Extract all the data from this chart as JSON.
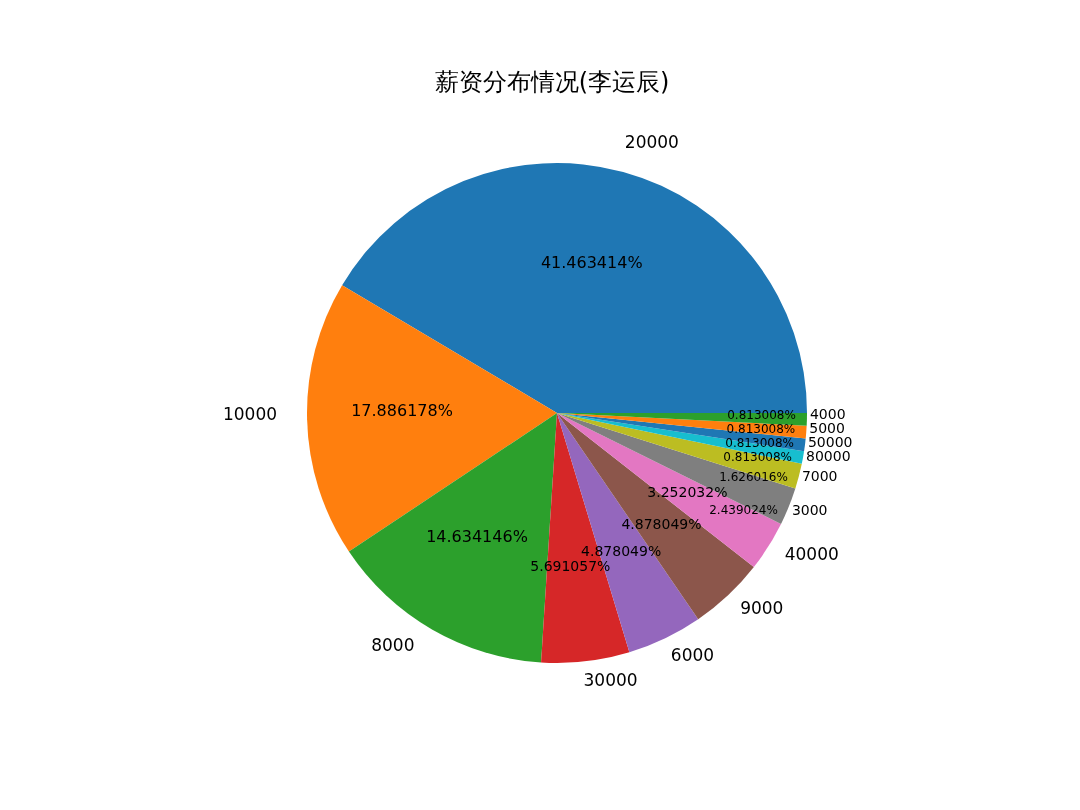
{
  "chart_data": {
    "type": "pie",
    "title": "薪资分布情况(李运辰)",
    "categories": [
      "20000",
      "10000",
      "8000",
      "30000",
      "6000",
      "9000",
      "40000",
      "3000",
      "7000",
      "80000",
      "50000",
      "5000",
      "4000"
    ],
    "values": [
      41.463414,
      17.886178,
      14.634146,
      5.691057,
      4.878049,
      4.878049,
      3.252032,
      2.439024,
      1.626016,
      0.813008,
      0.813008,
      0.813008,
      0.813008
    ],
    "colors": [
      "#1f77b4",
      "#ff7f0e",
      "#2ca02c",
      "#d62728",
      "#9467bd",
      "#8c564b",
      "#e377c2",
      "#7f7f7f",
      "#bcbd22",
      "#17becf",
      "#1f77b4",
      "#ff7f0e",
      "#2ca02c"
    ],
    "value_labels": [
      "41.463414%",
      "17.886178%",
      "14.634146%",
      "5.691057%",
      "4.878049%",
      "4.878049%",
      "3.252032%",
      "2.439024%",
      "1.626016%",
      "0.813008%",
      "0.813008%",
      "0.813008%",
      "0.813008%"
    ],
    "legend": false
  }
}
